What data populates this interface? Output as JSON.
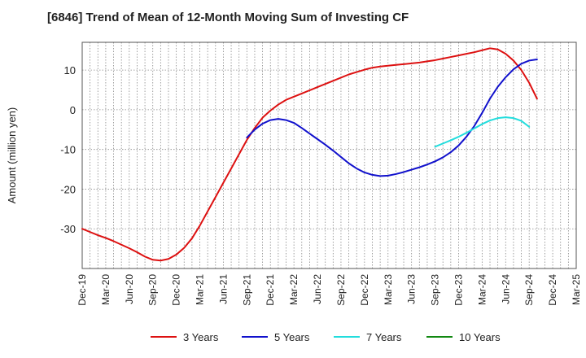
{
  "chart_data": {
    "type": "line",
    "title": "[6846]  Trend of Mean of 12-Month Moving Sum of Investing CF",
    "xlabel": "",
    "ylabel": "Amount (million yen)",
    "ylim": [
      -40,
      17
    ],
    "y_ticks": [
      10,
      0,
      -10,
      -20,
      -30
    ],
    "grid": true,
    "legend_position": "bottom",
    "x_tick_labels": [
      "Dec-19",
      "Mar-20",
      "Jun-20",
      "Sep-20",
      "Dec-20",
      "Mar-21",
      "Jun-21",
      "Sep-21",
      "Dec-21",
      "Mar-22",
      "Jun-22",
      "Sep-22",
      "Dec-22",
      "Mar-23",
      "Jun-23",
      "Sep-23",
      "Dec-23",
      "Mar-24",
      "Jun-24",
      "Sep-24",
      "Dec-24",
      "Mar-25"
    ],
    "x_months": [
      "2019-12",
      "2020-01",
      "2020-02",
      "2020-03",
      "2020-04",
      "2020-05",
      "2020-06",
      "2020-07",
      "2020-08",
      "2020-09",
      "2020-10",
      "2020-11",
      "2020-12",
      "2021-01",
      "2021-02",
      "2021-03",
      "2021-04",
      "2021-05",
      "2021-06",
      "2021-07",
      "2021-08",
      "2021-09",
      "2021-10",
      "2021-11",
      "2021-12",
      "2022-01",
      "2022-02",
      "2022-03",
      "2022-04",
      "2022-05",
      "2022-06",
      "2022-07",
      "2022-08",
      "2022-09",
      "2022-10",
      "2022-11",
      "2022-12",
      "2023-01",
      "2023-02",
      "2023-03",
      "2023-04",
      "2023-05",
      "2023-06",
      "2023-07",
      "2023-08",
      "2023-09",
      "2023-10",
      "2023-11",
      "2023-12",
      "2024-01",
      "2024-02",
      "2024-03",
      "2024-04",
      "2024-05",
      "2024-06",
      "2024-07",
      "2024-08",
      "2024-09",
      "2024-10",
      "2024-11",
      "2024-12",
      "2025-01",
      "2025-02",
      "2025-03"
    ],
    "series": [
      {
        "name": "3 Years",
        "color": "#dd1111",
        "start_index": 0,
        "values": [
          -30.0,
          -30.8,
          -31.6,
          -32.3,
          -33.1,
          -34.0,
          -34.9,
          -35.9,
          -37.0,
          -37.8,
          -38.0,
          -37.6,
          -36.5,
          -34.8,
          -32.4,
          -29.2,
          -25.6,
          -22.0,
          -18.4,
          -14.8,
          -11.2,
          -7.6,
          -4.6,
          -2.0,
          -0.2,
          1.3,
          2.5,
          3.3,
          4.1,
          4.9,
          5.7,
          6.5,
          7.3,
          8.1,
          8.9,
          9.5,
          10.1,
          10.6,
          10.9,
          11.1,
          11.3,
          11.5,
          11.7,
          11.9,
          12.2,
          12.5,
          12.9,
          13.3,
          13.7,
          14.1,
          14.5,
          15.0,
          15.5,
          15.2,
          14.1,
          12.4,
          10.0,
          6.8,
          2.8
        ]
      },
      {
        "name": "5 Years",
        "color": "#1111cc",
        "start_index": 21,
        "values": [
          -7.0,
          -5.0,
          -3.5,
          -2.6,
          -2.3,
          -2.6,
          -3.3,
          -4.6,
          -6.0,
          -7.4,
          -8.8,
          -10.3,
          -11.9,
          -13.5,
          -14.8,
          -15.8,
          -16.4,
          -16.7,
          -16.6,
          -16.2,
          -15.7,
          -15.1,
          -14.5,
          -13.8,
          -13.0,
          -12.0,
          -10.7,
          -9.0,
          -6.8,
          -4.1,
          -0.8,
          2.8,
          5.8,
          8.2,
          10.2,
          11.6,
          12.4,
          12.7
        ]
      },
      {
        "name": "7 Years",
        "color": "#22dddd",
        "start_index": 45,
        "values": [
          -9.3,
          -8.5,
          -7.7,
          -6.8,
          -5.8,
          -4.7,
          -3.6,
          -2.7,
          -2.1,
          -1.9,
          -2.1,
          -2.8,
          -4.3
        ]
      },
      {
        "name": "10 Years",
        "color": "#118811",
        "start_index": 0,
        "values": []
      }
    ]
  }
}
